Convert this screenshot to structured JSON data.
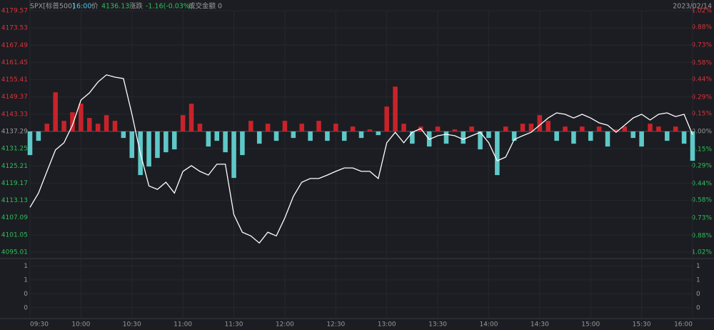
{
  "header": {
    "symbol": "SPX[标普500]",
    "time": "16:00",
    "price_label": "价",
    "price": "4136.13",
    "change_label": "涨跌",
    "change": "-1.16(-0.03%)",
    "turnover_label": "成交金额",
    "turnover": "0",
    "date": "2023/02/14"
  },
  "chart_data": {
    "type": "line",
    "categories": [
      "09:30",
      "09:35",
      "09:40",
      "09:45",
      "09:50",
      "09:55",
      "10:00",
      "10:05",
      "10:10",
      "10:15",
      "10:20",
      "10:25",
      "10:30",
      "10:35",
      "10:40",
      "10:45",
      "10:50",
      "10:55",
      "11:00",
      "11:05",
      "11:10",
      "11:15",
      "11:20",
      "11:25",
      "11:30",
      "11:35",
      "11:40",
      "11:45",
      "11:50",
      "11:55",
      "12:00",
      "12:05",
      "12:10",
      "12:15",
      "12:20",
      "12:25",
      "12:30",
      "12:35",
      "12:40",
      "12:45",
      "12:50",
      "12:55",
      "13:00",
      "13:05",
      "13:10",
      "13:15",
      "13:20",
      "13:25",
      "13:30",
      "13:35",
      "13:40",
      "13:45",
      "13:50",
      "13:55",
      "14:00",
      "14:05",
      "14:10",
      "14:15",
      "14:20",
      "14:25",
      "14:30",
      "14:35",
      "14:40",
      "14:45",
      "14:50",
      "14:55",
      "15:00",
      "15:05",
      "15:10",
      "15:15",
      "15:20",
      "15:25",
      "15:30",
      "15:35",
      "15:40",
      "15:45",
      "15:50",
      "15:55",
      "16:00"
    ],
    "series": [
      {
        "color": "#ffffff",
        "values": [
          4110.7,
          4115.7,
          4123.3,
          4130.8,
          4133.3,
          4139.5,
          4148.3,
          4150.8,
          4154.6,
          4157.1,
          4156.3,
          4155.8,
          4143.3,
          4129.5,
          4118.2,
          4117,
          4119.5,
          4115.7,
          4123.3,
          4125.3,
          4123.3,
          4122,
          4125.8,
          4125.8,
          4108.2,
          4102,
          4100.7,
          4098.2,
          4102,
          4100.7,
          4107,
          4114.5,
          4119.5,
          4120.8,
          4120.8,
          4122,
          4123.3,
          4124.5,
          4124.5,
          4123.3,
          4123.3,
          4120.8,
          4133.3,
          4137,
          4133.3,
          4137,
          4138.3,
          4134.5,
          4135.8,
          4136.3,
          4135.8,
          4134.5,
          4135.8,
          4137,
          4133.3,
          4127,
          4128.3,
          4134.5,
          4135.8,
          4137,
          4139.5,
          4142,
          4143.8,
          4143.3,
          4142,
          4143.3,
          4142,
          4140.3,
          4139.5,
          4137,
          4139.5,
          4142,
          4143.3,
          4141.3,
          4143.3,
          4143.8,
          4142.5,
          4143.3,
          4136.13
        ]
      }
    ],
    "bars": {
      "up_color": "#c8232a",
      "down_color": "#5fc8c8",
      "values": [
        4129,
        4134,
        4140,
        4151,
        4141,
        4144,
        4147,
        4142,
        4140,
        4143,
        4141,
        4135,
        4128,
        4122,
        4125,
        4128,
        4130,
        4131,
        4143,
        4147,
        4140,
        4132,
        4134,
        4130,
        4121,
        4129,
        4141,
        4133,
        4140,
        4134,
        4141,
        4135,
        4140,
        4134,
        4141,
        4134,
        4140,
        4134,
        4139,
        4135,
        4138,
        4136,
        4146,
        4153,
        4140,
        4133,
        4139,
        4132,
        4139,
        4133,
        4138,
        4133,
        4139,
        4131,
        4135,
        4122,
        4139,
        4134,
        4140,
        4140,
        4143,
        4141,
        4134,
        4139,
        4133,
        4139,
        4134,
        4139,
        4132,
        4138,
        4139,
        4135,
        4132,
        4140,
        4139,
        4134,
        4139,
        4133,
        4127
      ]
    },
    "base": 4137.29,
    "ylim": [
      4095.01,
      4179.57
    ],
    "yticks": [
      4095.01,
      4101.05,
      4107.09,
      4113.13,
      4119.17,
      4125.21,
      4131.25,
      4137.29,
      4143.33,
      4149.37,
      4155.41,
      4161.45,
      4167.49,
      4173.53,
      4179.57
    ],
    "y2lim": [
      -1.02,
      1.02
    ],
    "y2ticks": [
      {
        "value": -1.02,
        "label": "1.02%"
      },
      {
        "value": -0.88,
        "label": "0.88%"
      },
      {
        "value": -0.73,
        "label": "0.73%"
      },
      {
        "value": -0.58,
        "label": "0.58%"
      },
      {
        "value": -0.44,
        "label": "0.44%"
      },
      {
        "value": -0.29,
        "label": "0.29%"
      },
      {
        "value": -0.15,
        "label": "0.15%"
      },
      {
        "value": 0,
        "label": "0.00%"
      },
      {
        "value": 0.15,
        "label": "0.15%"
      },
      {
        "value": 0.29,
        "label": "0.29%"
      },
      {
        "value": 0.44,
        "label": "0.44%"
      },
      {
        "value": 0.58,
        "label": "0.58%"
      },
      {
        "value": 0.73,
        "label": "0.73%"
      },
      {
        "value": 0.88,
        "label": "0.88%"
      },
      {
        "value": 1.02,
        "label": "1.02%"
      }
    ],
    "xticks": [
      "09:30",
      "10:00",
      "10:30",
      "11:00",
      "11:30",
      "12:00",
      "12:30",
      "13:00",
      "13:30",
      "14:00",
      "14:30",
      "15:00",
      "15:30",
      "16:00"
    ],
    "lower_ylim": [
      -0.35,
      1.59
    ],
    "lower_yticks": [
      {
        "value": 1.35,
        "label": "1"
      },
      {
        "value": 0.9,
        "label": "1"
      },
      {
        "value": 0.45,
        "label": "0"
      },
      {
        "value": 0,
        "label": "0"
      }
    ],
    "grid": true
  }
}
